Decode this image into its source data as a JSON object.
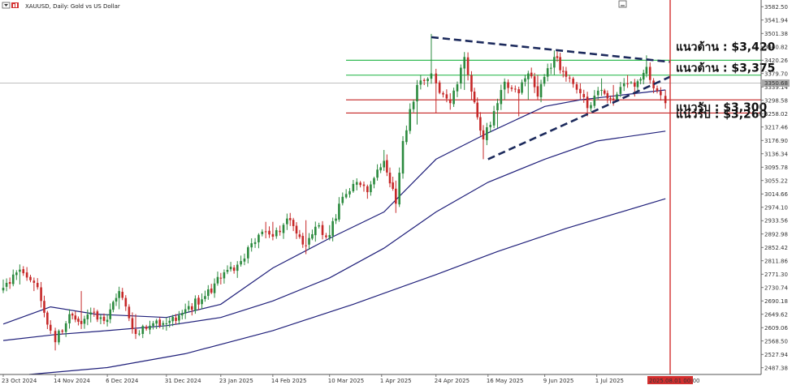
{
  "header": {
    "symbol_text": "XAUUSD, Daily:  Gold vs US Dollar",
    "menu_icon": "dropdown-arrow-icon",
    "window_icon": "window-minimize-icon"
  },
  "chart_data": {
    "type": "candlestick",
    "symbol": "XAUUSD",
    "timeframe": "Daily",
    "x_range": [
      "2024-10-23",
      "2025-08-01"
    ],
    "ylim": [
      2467.1,
      3602.8
    ],
    "y_ticks": [
      "3582.50",
      "3541.94",
      "3501.38",
      "3460.82",
      "3420.26",
      "3379.70",
      "3339.14",
      "3298.58",
      "3258.02",
      "3217.46",
      "3176.90",
      "3136.34",
      "3095.78",
      "3055.22",
      "3014.66",
      "2974.10",
      "2933.56",
      "2892.98",
      "2852.42",
      "2811.86",
      "2771.30",
      "2730.74",
      "2690.18",
      "2649.62",
      "2609.06",
      "2568.50",
      "2527.94",
      "2487.38"
    ],
    "current_price": "3350.68",
    "x_ticks": [
      "23 Oct 2024",
      "14 Nov 2024",
      "6 Dec 2024",
      "31 Dec 2024",
      "23 Jan 2025",
      "14 Feb 2025",
      "10 Mar 2025",
      "1 Apr 2025",
      "24 Apr 2025",
      "16 May 2025",
      "9 Jun 2025",
      "1 Jul 2025"
    ],
    "vline_label": "2025.08.01 00:00",
    "anchors": [
      [
        "2024-10-23",
        2730,
        2755,
        2715
      ],
      [
        "2024-10-30",
        2785,
        2795,
        2740
      ],
      [
        "2024-11-05",
        2745,
        2760,
        2720
      ],
      [
        "2024-11-08",
        2690,
        2710,
        2670
      ],
      [
        "2024-11-12",
        2600,
        2630,
        2590
      ],
      [
        "2024-11-14",
        2565,
        2590,
        2540
      ],
      [
        "2024-11-20",
        2650,
        2665,
        2620
      ],
      [
        "2024-11-25",
        2620,
        2720,
        2605
      ],
      [
        "2024-11-29",
        2655,
        2670,
        2625
      ],
      [
        "2024-12-06",
        2633,
        2650,
        2620
      ],
      [
        "2024-12-11",
        2720,
        2728,
        2665
      ],
      [
        "2024-12-18",
        2590,
        2650,
        2580
      ],
      [
        "2024-12-24",
        2615,
        2630,
        2600
      ],
      [
        "2024-12-31",
        2622,
        2640,
        2600
      ],
      [
        "2025-01-08",
        2665,
        2675,
        2640
      ],
      [
        "2025-01-15",
        2695,
        2705,
        2670
      ],
      [
        "2025-01-23",
        2760,
        2775,
        2740
      ],
      [
        "2025-01-30",
        2800,
        2805,
        2760
      ],
      [
        "2025-02-05",
        2865,
        2880,
        2840
      ],
      [
        "2025-02-11",
        2900,
        2930,
        2880
      ],
      [
        "2025-02-14",
        2885,
        2930,
        2875
      ],
      [
        "2025-02-20",
        2940,
        2955,
        2915
      ],
      [
        "2025-02-28",
        2858,
        2935,
        2832
      ],
      [
        "2025-03-04",
        2915,
        2925,
        2870
      ],
      [
        "2025-03-10",
        2890,
        2920,
        2880
      ],
      [
        "2025-03-14",
        2985,
        3005,
        2980
      ],
      [
        "2025-03-20",
        3045,
        3057,
        3020
      ],
      [
        "2025-03-26",
        3020,
        3030,
        3000
      ],
      [
        "2025-04-02",
        3115,
        3148,
        3095
      ],
      [
        "2025-04-07",
        2985,
        3055,
        2957
      ],
      [
        "2025-04-10",
        3175,
        3190,
        3095
      ],
      [
        "2025-04-16",
        3345,
        3360,
        3225
      ],
      [
        "2025-04-22",
        3380,
        3500,
        3365
      ],
      [
        "2025-04-24",
        3350,
        3370,
        3260
      ],
      [
        "2025-04-30",
        3290,
        3320,
        3270
      ],
      [
        "2025-05-06",
        3430,
        3435,
        3330
      ],
      [
        "2025-05-09",
        3325,
        3350,
        3300
      ],
      [
        "2025-05-14",
        3180,
        3200,
        3120
      ],
      [
        "2025-05-20",
        3290,
        3295,
        3215
      ],
      [
        "2025-05-23",
        3355,
        3365,
        3300
      ],
      [
        "2025-05-29",
        3320,
        3330,
        3250
      ],
      [
        "2025-06-02",
        3380,
        3385,
        3300
      ],
      [
        "2025-06-06",
        3310,
        3375,
        3300
      ],
      [
        "2025-06-13",
        3430,
        3450,
        3375
      ],
      [
        "2025-06-18",
        3370,
        3400,
        3360
      ],
      [
        "2025-06-24",
        3320,
        3350,
        3300
      ],
      [
        "2025-06-27",
        3275,
        3300,
        3250
      ],
      [
        "2025-07-03",
        3330,
        3365,
        3320
      ],
      [
        "2025-07-08",
        3300,
        3345,
        3282
      ],
      [
        "2025-07-14",
        3350,
        3375,
        3340
      ],
      [
        "2025-07-17",
        3340,
        3355,
        3310
      ],
      [
        "2025-07-22",
        3400,
        3435,
        3380
      ],
      [
        "2025-07-25",
        3335,
        3360,
        3320
      ],
      [
        "2025-07-28",
        3314,
        3330,
        3300
      ],
      [
        "2025-07-30",
        3290,
        3330,
        3280
      ]
    ],
    "moving_averages": [
      {
        "color": "#1f1f7a",
        "points": [
          [
            "2024-10-23",
            2620
          ],
          [
            "2024-11-12",
            2672
          ],
          [
            "2024-12-01",
            2650
          ],
          [
            "2024-12-31",
            2640
          ],
          [
            "2025-01-23",
            2680
          ],
          [
            "2025-02-14",
            2790
          ],
          [
            "2025-03-10",
            2880
          ],
          [
            "2025-04-02",
            2960
          ],
          [
            "2025-04-24",
            3120
          ],
          [
            "2025-05-16",
            3200
          ],
          [
            "2025-06-09",
            3280
          ],
          [
            "2025-06-24",
            3300
          ],
          [
            "2025-07-30",
            3330
          ]
        ]
      },
      {
        "color": "#1f1f7a",
        "points": [
          [
            "2024-10-23",
            2570
          ],
          [
            "2024-11-14",
            2588
          ],
          [
            "2024-12-06",
            2600
          ],
          [
            "2024-12-31",
            2615
          ],
          [
            "2025-01-23",
            2640
          ],
          [
            "2025-02-14",
            2690
          ],
          [
            "2025-03-10",
            2760
          ],
          [
            "2025-04-02",
            2850
          ],
          [
            "2025-04-24",
            2960
          ],
          [
            "2025-05-16",
            3050
          ],
          [
            "2025-06-09",
            3120
          ],
          [
            "2025-07-01",
            3175
          ],
          [
            "2025-07-30",
            3205
          ]
        ]
      },
      {
        "color": "#1f1f7a",
        "points": [
          [
            "2024-11-03",
            2467
          ],
          [
            "2024-12-06",
            2488
          ],
          [
            "2025-01-08",
            2530
          ],
          [
            "2025-02-14",
            2600
          ],
          [
            "2025-03-20",
            2680
          ],
          [
            "2025-04-24",
            2770
          ],
          [
            "2025-05-20",
            2840
          ],
          [
            "2025-06-18",
            2910
          ],
          [
            "2025-07-30",
            3000
          ]
        ]
      }
    ],
    "trendlines": [
      {
        "color": "#1c2a5c",
        "dashed": true,
        "from": [
          "2025-04-22",
          3490
        ],
        "to": [
          "2025-08-01",
          3415
        ]
      },
      {
        "color": "#1c2a5c",
        "dashed": true,
        "from": [
          "2025-05-16",
          3120
        ],
        "to": [
          "2025-08-01",
          3370
        ]
      }
    ],
    "h_levels": [
      {
        "value": 3420,
        "color": "#33bb55",
        "label": "แนวต้าน : $3,420"
      },
      {
        "value": 3375,
        "color": "#33bb55",
        "label": "แนวต้าน : $3,375"
      },
      {
        "value": 3300,
        "color": "#c42323",
        "label": "แนวรับ : $3,300"
      },
      {
        "value": 3260,
        "color": "#c42323",
        "label": "แนวรับ : $3,260"
      }
    ],
    "colors": {
      "bull": "#2b8a3e",
      "bear": "#c62828",
      "vline": "#d32f2f",
      "grid": "#dddddd",
      "price_line": "#999999"
    }
  }
}
